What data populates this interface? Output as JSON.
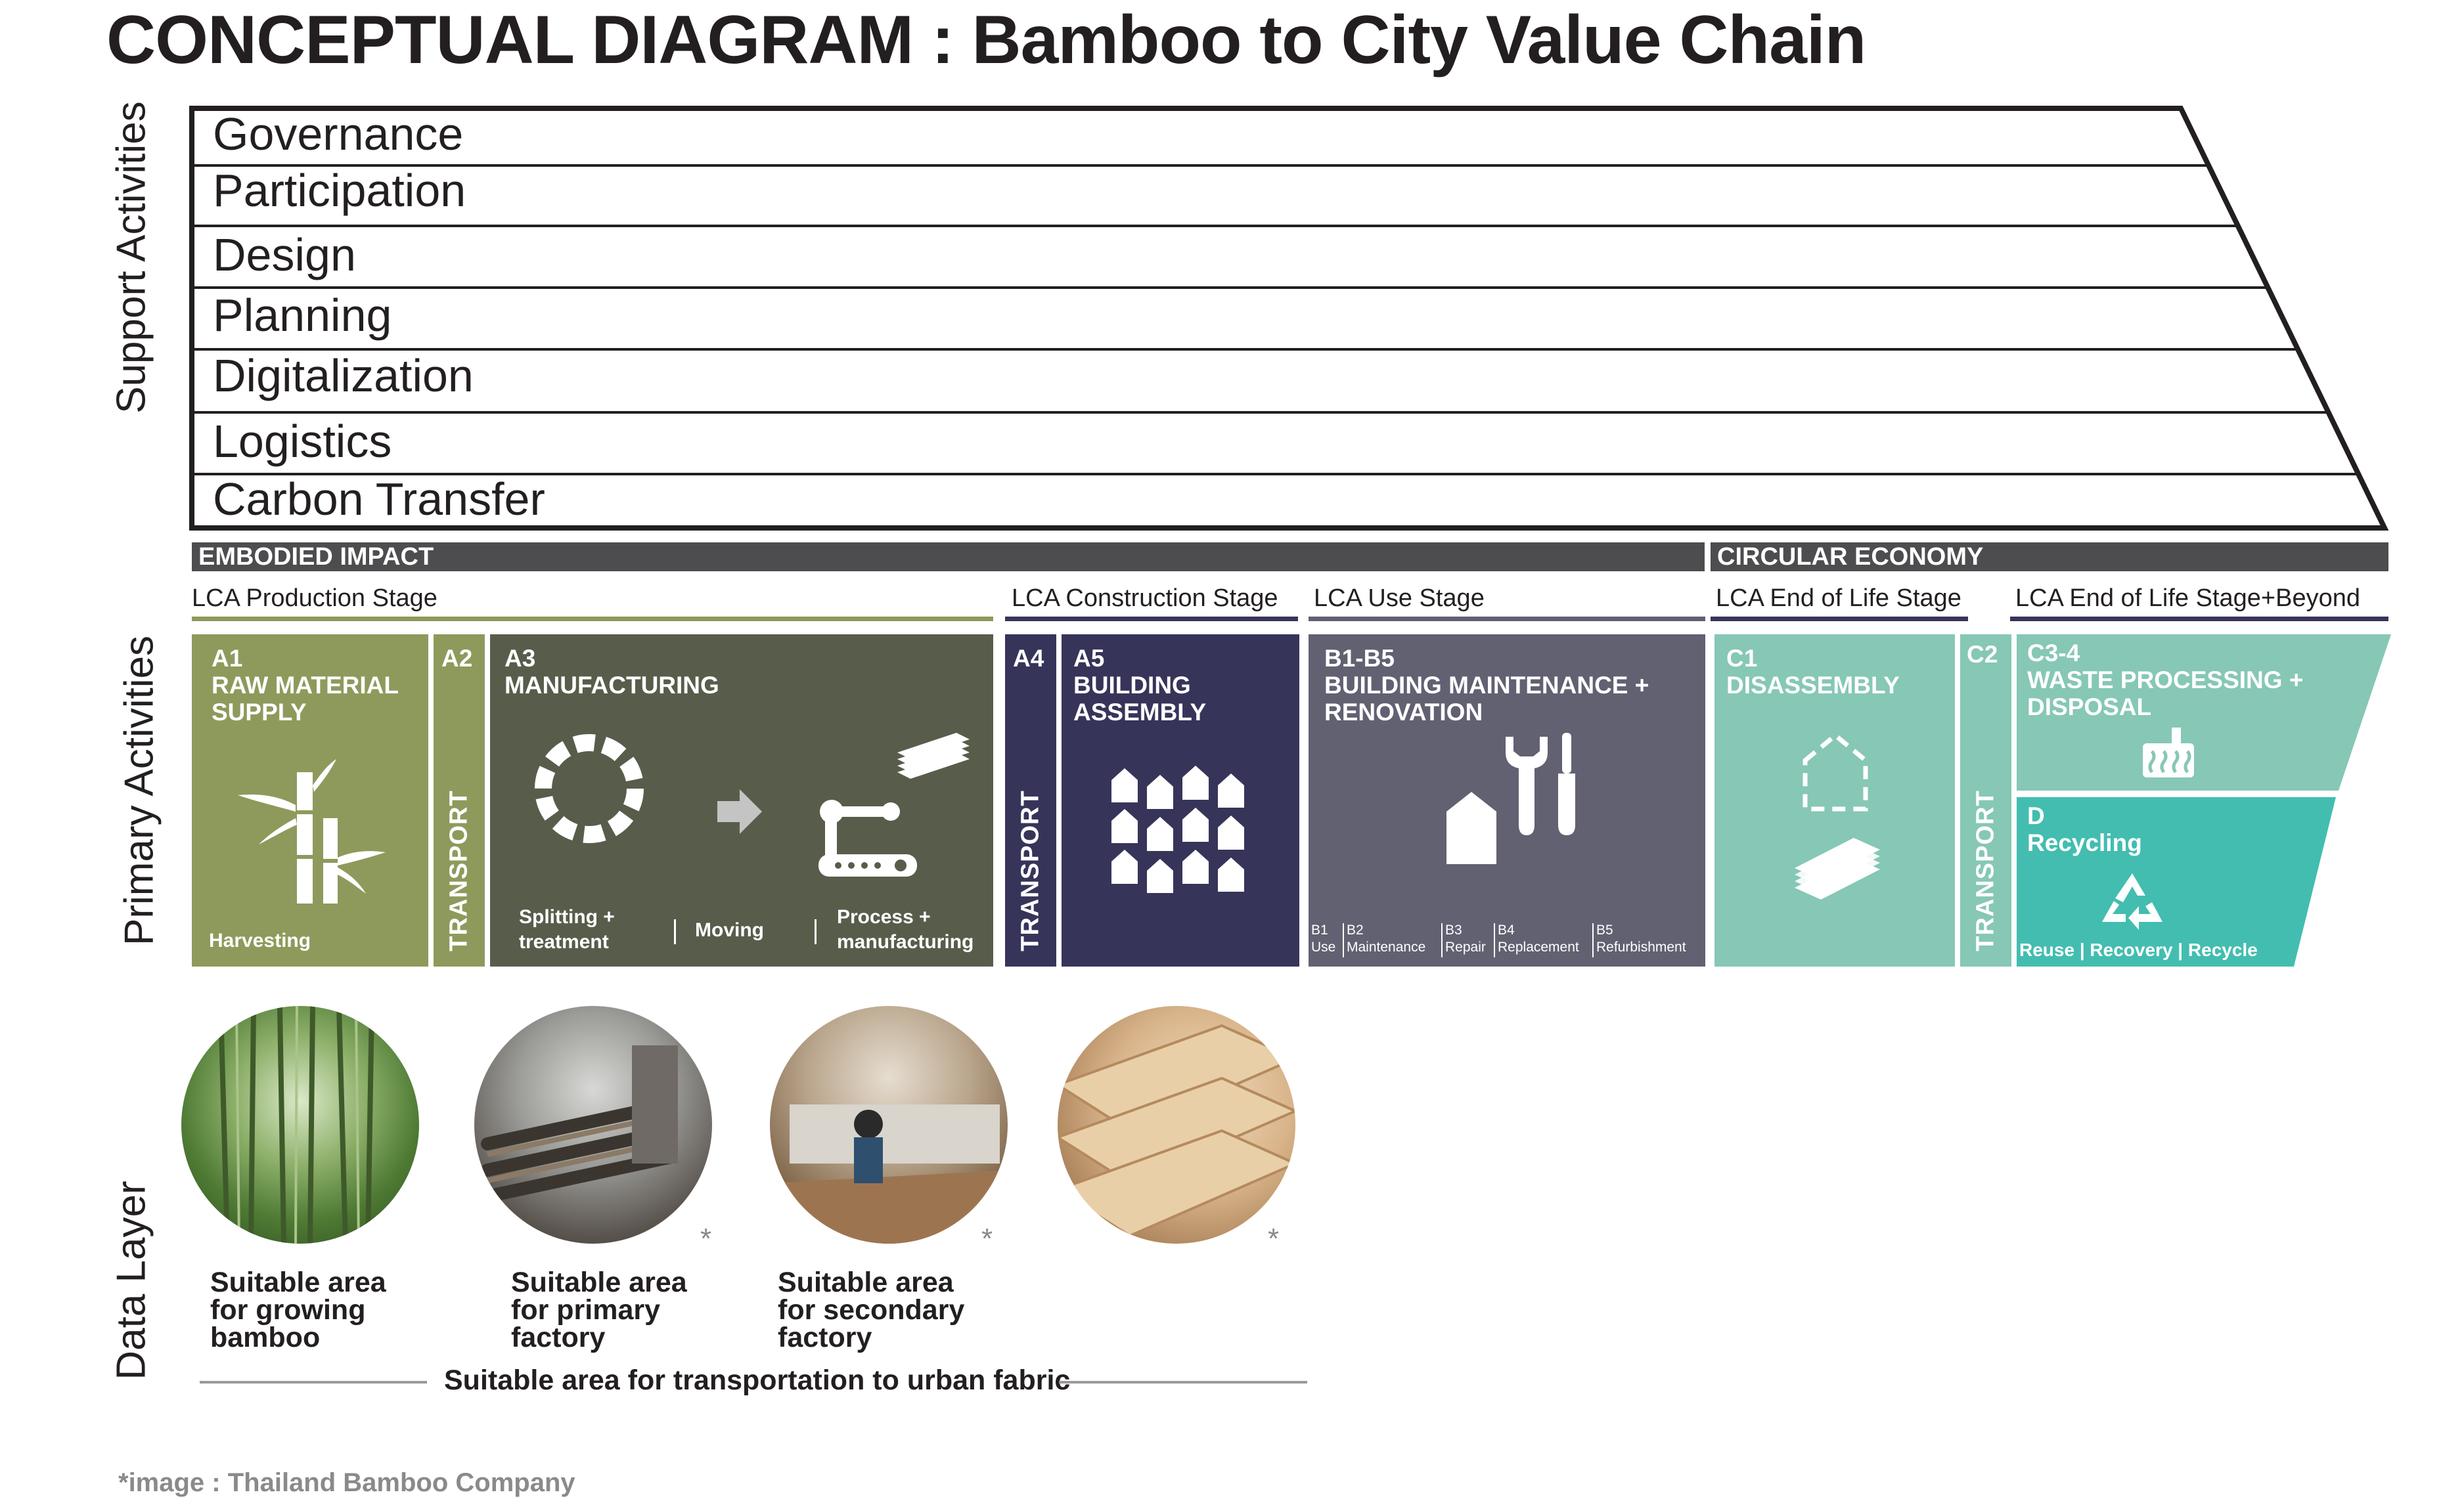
{
  "title": "CONCEPTUAL DIAGRAM : Bamboo to City Value Chain",
  "layers": {
    "support": "Support Activities",
    "primary": "Primary Activities",
    "data": "Data Layer"
  },
  "support_activities": [
    "Governance",
    "Participation",
    "Design",
    "Planning",
    "Digitalization",
    "Logistics",
    "Carbon Transfer"
  ],
  "categories": {
    "embodied": "EMBODIED IMPACT",
    "circular": "CIRCULAR ECONOMY"
  },
  "stages": {
    "production": "LCA Production Stage",
    "construction": "LCA Construction Stage",
    "use": "LCA Use Stage",
    "end_of_life": "LCA End of Life Stage",
    "beyond": "LCA End of Life Stage+Beyond"
  },
  "blocks": {
    "a1": {
      "code": "A1",
      "title1": "RAW MATERIAL",
      "title2": "SUPPLY",
      "sub": "Harvesting"
    },
    "a2": {
      "code": "A2",
      "vertical": "TRANSPORT"
    },
    "a3": {
      "code": "A3",
      "title1": "MANUFACTURING",
      "sub1a": "Splitting +",
      "sub1b": "treatment",
      "sub2": "Moving",
      "sub3a": "Process +",
      "sub3b": "manufacturing"
    },
    "a4": {
      "code": "A4",
      "vertical": "TRANSPORT"
    },
    "a5": {
      "code": "A5",
      "title1": "BUILDING",
      "title2": "ASSEMBLY"
    },
    "b": {
      "code": "B1-B5",
      "title1": "BUILDING MAINTENANCE +",
      "title2": "RENOVATION",
      "items": [
        {
          "code": "B1",
          "label": "Use"
        },
        {
          "code": "B2",
          "label": "Maintenance"
        },
        {
          "code": "B3",
          "label": "Repair"
        },
        {
          "code": "B4",
          "label": "Replacement"
        },
        {
          "code": "B5",
          "label": "Refurbishment"
        }
      ]
    },
    "c1": {
      "code": "C1",
      "title1": "DISASSEMBLY"
    },
    "c2": {
      "code": "C2",
      "vertical": "TRANSPORT"
    },
    "c34": {
      "code": "C3-4",
      "title1": "WASTE PROCESSING +",
      "title2": "DISPOSAL"
    },
    "d": {
      "code": "D",
      "title1": "Recycling",
      "sub": "Reuse | Recovery | Recycle"
    }
  },
  "data_layer": {
    "captions": [
      "Suitable area\nfor growing\nbamboo",
      "Suitable area\nfor primary\nfactory",
      "Suitable area\nfor secondary\nfactory"
    ],
    "star": "*",
    "transport_line": "Suitable area for transportation to urban fabric",
    "footnote": "*image : Thailand Bamboo Company"
  },
  "colors": {
    "olive": "#8e9a5c",
    "dark_olive": "#585d4b",
    "navy": "#37345a",
    "slate": "#626172",
    "mint": "#86c7b5",
    "teal": "#43bdb0",
    "bar_gray": "#4d4d4f"
  }
}
